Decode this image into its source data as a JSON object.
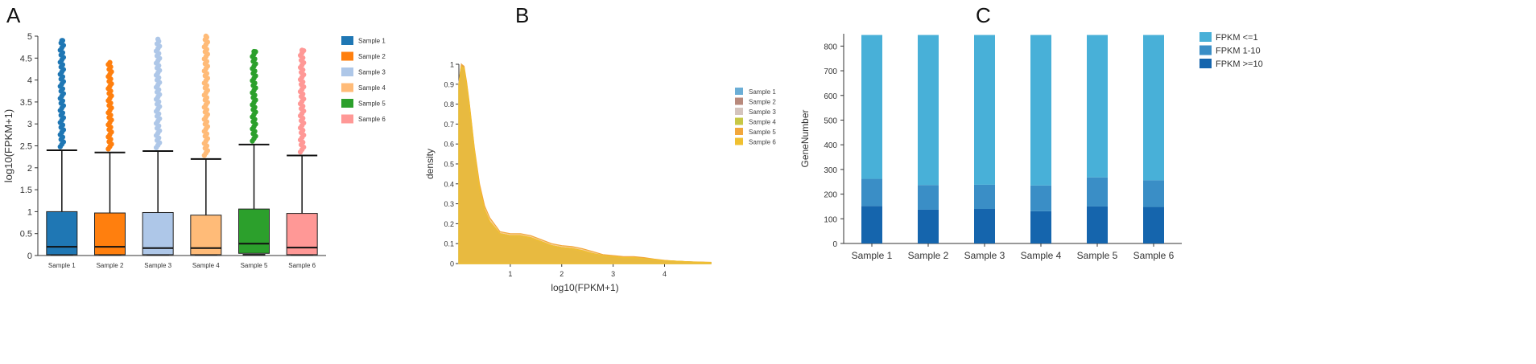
{
  "panels": {
    "A": {
      "letter": "A"
    },
    "B": {
      "letter": "B"
    },
    "C": {
      "letter": "C"
    }
  },
  "chart_data": [
    {
      "id": "A",
      "type": "box",
      "ylabel": "log10(FPKM+1)",
      "ylim": [
        0,
        5
      ],
      "yticks": [
        0,
        0.5,
        1,
        1.5,
        2,
        2.5,
        3,
        3.5,
        4,
        4.5,
        5
      ],
      "legend": "right",
      "categories": [
        "Sample 1",
        "Sample 2",
        "Sample 3",
        "Sample 4",
        "Sample 5",
        "Sample 6"
      ],
      "series": [
        {
          "name": "Sample 1",
          "color": "#1f77b4",
          "min": 0.02,
          "q1": 0.02,
          "median": 0.2,
          "q3": 1.0,
          "whisker_high": 2.4,
          "outlier_max": 4.9
        },
        {
          "name": "Sample 2",
          "color": "#ff7f0e",
          "min": 0.02,
          "q1": 0.02,
          "median": 0.2,
          "q3": 0.97,
          "whisker_high": 2.35,
          "outlier_max": 4.4
        },
        {
          "name": "Sample 3",
          "color": "#aec7e8",
          "min": 0.02,
          "q1": 0.02,
          "median": 0.17,
          "q3": 0.98,
          "whisker_high": 2.38,
          "outlier_max": 4.93
        },
        {
          "name": "Sample 4",
          "color": "#ffbb78",
          "min": 0.02,
          "q1": 0.02,
          "median": 0.17,
          "q3": 0.92,
          "whisker_high": 2.2,
          "outlier_max": 5.0
        },
        {
          "name": "Sample 5",
          "color": "#2ca02c",
          "min": 0.02,
          "q1": 0.05,
          "median": 0.27,
          "q3": 1.06,
          "whisker_high": 2.53,
          "outlier_max": 4.65
        },
        {
          "name": "Sample 6",
          "color": "#ff9896",
          "min": 0.02,
          "q1": 0.02,
          "median": 0.18,
          "q3": 0.96,
          "whisker_high": 2.28,
          "outlier_max": 4.68
        }
      ]
    },
    {
      "id": "B",
      "type": "area",
      "xlabel": "log10(FPKM+1)",
      "ylabel": "density",
      "xlim": [
        0,
        4.9
      ],
      "ylim": [
        0,
        1
      ],
      "xticks": [
        1,
        2,
        3,
        4
      ],
      "yticks": [
        0,
        0.1,
        0.2,
        0.3,
        0.4,
        0.5,
        0.6,
        0.7,
        0.8,
        0.9,
        1
      ],
      "legend": "right",
      "x": [
        0,
        0.05,
        0.1,
        0.15,
        0.2,
        0.3,
        0.4,
        0.5,
        0.6,
        0.8,
        1.0,
        1.2,
        1.4,
        1.6,
        1.8,
        2.0,
        2.2,
        2.4,
        2.6,
        2.8,
        3.0,
        3.2,
        3.4,
        3.6,
        3.8,
        4.0,
        4.2,
        4.5,
        4.9
      ],
      "series": [
        {
          "name": "Sample 1",
          "color": "#6baed6",
          "values": [
            0.9,
            0.99,
            0.98,
            0.9,
            0.8,
            0.57,
            0.38,
            0.27,
            0.21,
            0.15,
            0.13,
            0.13,
            0.12,
            0.11,
            0.09,
            0.08,
            0.07,
            0.06,
            0.05,
            0.04,
            0.035,
            0.03,
            0.03,
            0.025,
            0.02,
            0.015,
            0.01,
            0.008,
            0.005
          ]
        },
        {
          "name": "Sample 2",
          "color": "#b8897c",
          "values": [
            0.91,
            1.0,
            0.98,
            0.9,
            0.8,
            0.56,
            0.37,
            0.26,
            0.2,
            0.15,
            0.14,
            0.14,
            0.13,
            0.11,
            0.09,
            0.08,
            0.075,
            0.065,
            0.05,
            0.04,
            0.03,
            0.03,
            0.03,
            0.025,
            0.02,
            0.015,
            0.012,
            0.008,
            0.005
          ]
        },
        {
          "name": "Sample 3",
          "color": "#d4c4bd",
          "values": [
            0.9,
            0.99,
            0.97,
            0.89,
            0.79,
            0.56,
            0.38,
            0.27,
            0.21,
            0.15,
            0.14,
            0.13,
            0.12,
            0.11,
            0.09,
            0.08,
            0.07,
            0.06,
            0.05,
            0.04,
            0.035,
            0.03,
            0.028,
            0.022,
            0.018,
            0.014,
            0.01,
            0.007,
            0.005
          ]
        },
        {
          "name": "Sample 4",
          "color": "#c7c745",
          "values": [
            0.9,
            0.99,
            0.98,
            0.9,
            0.8,
            0.57,
            0.38,
            0.27,
            0.21,
            0.15,
            0.14,
            0.14,
            0.13,
            0.11,
            0.09,
            0.08,
            0.075,
            0.065,
            0.05,
            0.04,
            0.035,
            0.03,
            0.03,
            0.025,
            0.02,
            0.015,
            0.012,
            0.008,
            0.005
          ]
        },
        {
          "name": "Sample 5",
          "color": "#f2a73b",
          "values": [
            0.9,
            1.0,
            0.99,
            0.91,
            0.81,
            0.58,
            0.4,
            0.29,
            0.23,
            0.16,
            0.15,
            0.15,
            0.14,
            0.12,
            0.1,
            0.09,
            0.085,
            0.075,
            0.06,
            0.045,
            0.04,
            0.035,
            0.035,
            0.03,
            0.022,
            0.016,
            0.012,
            0.009,
            0.006
          ]
        },
        {
          "name": "Sample 6",
          "color": "#f0c030",
          "values": [
            0.9,
            0.99,
            0.98,
            0.9,
            0.8,
            0.57,
            0.38,
            0.27,
            0.21,
            0.15,
            0.14,
            0.14,
            0.13,
            0.11,
            0.09,
            0.08,
            0.075,
            0.065,
            0.05,
            0.04,
            0.035,
            0.03,
            0.03,
            0.025,
            0.02,
            0.015,
            0.012,
            0.008,
            0.005
          ]
        }
      ]
    },
    {
      "id": "C",
      "type": "bar",
      "stacked": true,
      "ylabel": "GeneNumber",
      "ylim": [
        0,
        850
      ],
      "yticks": [
        0,
        100,
        200,
        300,
        400,
        500,
        600,
        700,
        800
      ],
      "legend": "top-right",
      "categories": [
        "Sample 1",
        "Sample 2",
        "Sample 3",
        "Sample 4",
        "Sample 5",
        "Sample 6"
      ],
      "series": [
        {
          "name": "FPKM >=10",
          "color": "#1565ad",
          "values": [
            152,
            137,
            140,
            131,
            150,
            148
          ]
        },
        {
          "name": "FPKM 1-10",
          "color": "#3a8ec6",
          "values": [
            110,
            100,
            98,
            104,
            118,
            108
          ]
        },
        {
          "name": "FPKM <=1",
          "color": "#48b0d8",
          "values": [
            583,
            608,
            607,
            610,
            577,
            589
          ]
        }
      ]
    }
  ]
}
